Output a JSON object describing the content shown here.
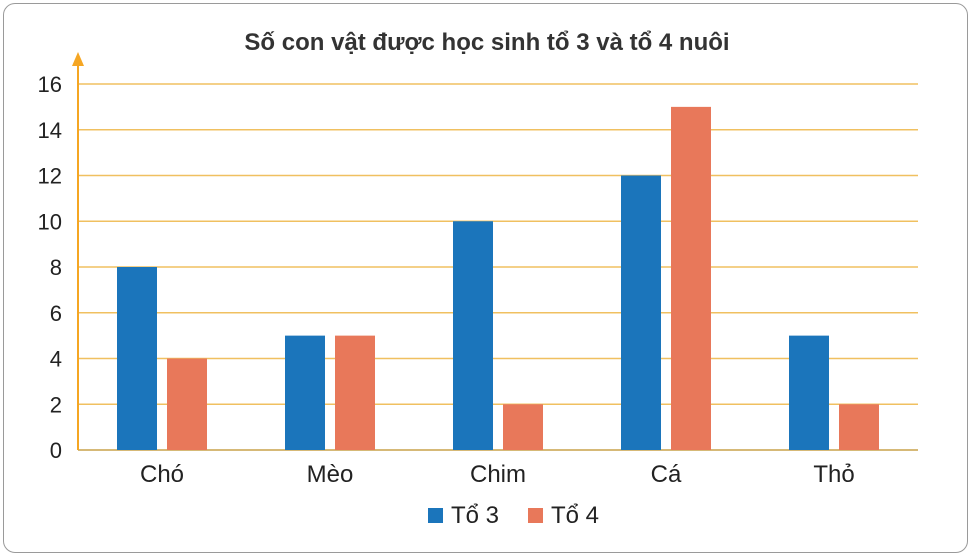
{
  "chart_data": {
    "type": "bar",
    "title": "Số con vật được học sinh tổ 3 và tổ 4 nuôi",
    "xlabel": "",
    "ylabel": "",
    "categories": [
      "Chó",
      "Mèo",
      "Chim",
      "Cá",
      "Thỏ"
    ],
    "series": [
      {
        "name": "Tổ 3",
        "values": [
          8,
          5,
          10,
          12,
          5
        ],
        "color": "#1b75bb"
      },
      {
        "name": "Tổ 4",
        "values": [
          4,
          5,
          2,
          15,
          2
        ],
        "color": "#e8785a"
      }
    ],
    "ylim": [
      0,
      16
    ],
    "yticks": [
      "0",
      "2",
      "4",
      "6",
      "8",
      "10",
      "12",
      "14",
      "16"
    ],
    "grid": true,
    "grid_color": "#f0c060",
    "axis_arrow_color": "#f5a623",
    "legend_position": "bottom-center"
  }
}
